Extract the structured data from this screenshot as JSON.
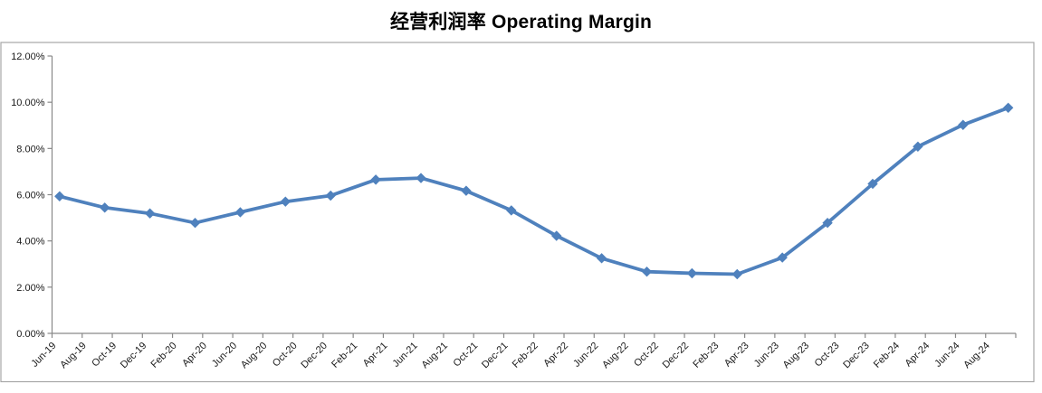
{
  "title": "经营利润率 Operating Margin",
  "chart_data": {
    "type": "line",
    "title": "经营利润率 Operating Margin",
    "grid": false,
    "legend": false,
    "y_unit": "percent",
    "ylim": [
      0,
      12
    ],
    "y_tick_labels": [
      "0.00%",
      "2.00%",
      "4.00%",
      "6.00%",
      "8.00%",
      "10.00%",
      "12.00%"
    ],
    "y_tick_values": [
      0,
      2,
      4,
      6,
      8,
      10,
      12
    ],
    "x_tick_labels": [
      "Jun-19",
      "Aug-19",
      "Oct-19",
      "Dec-19",
      "Feb-20",
      "Apr-20",
      "Jun-20",
      "Aug-20",
      "Oct-20",
      "Dec-20",
      "Feb-21",
      "Apr-21",
      "Jun-21",
      "Aug-21",
      "Oct-21",
      "Dec-21",
      "Feb-22",
      "Apr-22",
      "Jun-22",
      "Aug-22",
      "Oct-22",
      "Dec-22",
      "Feb-23",
      "Apr-23",
      "Jun-23",
      "Aug-23",
      "Oct-23",
      "Dec-23",
      "Feb-24",
      "Apr-24",
      "Jun-24",
      "Aug-24"
    ],
    "x_tick_interval_months": 2,
    "series": [
      {
        "name": "Operating Margin",
        "cadence": "quarterly",
        "points": [
          {
            "period": "Jun-19",
            "month_index": 0,
            "value": 5.93
          },
          {
            "period": "Sep-19",
            "month_index": 3,
            "value": 5.44
          },
          {
            "period": "Dec-19",
            "month_index": 6,
            "value": 5.19
          },
          {
            "period": "Mar-20",
            "month_index": 9,
            "value": 4.78
          },
          {
            "period": "Jun-20",
            "month_index": 12,
            "value": 5.24
          },
          {
            "period": "Sep-20",
            "month_index": 15,
            "value": 5.7
          },
          {
            "period": "Dec-20",
            "month_index": 18,
            "value": 5.96
          },
          {
            "period": "Mar-21",
            "month_index": 21,
            "value": 6.65
          },
          {
            "period": "Jun-21",
            "month_index": 24,
            "value": 6.72
          },
          {
            "period": "Sep-21",
            "month_index": 27,
            "value": 6.17
          },
          {
            "period": "Dec-21",
            "month_index": 30,
            "value": 5.32
          },
          {
            "period": "Mar-22",
            "month_index": 33,
            "value": 4.22
          },
          {
            "period": "Jun-22",
            "month_index": 36,
            "value": 3.25
          },
          {
            "period": "Sep-22",
            "month_index": 39,
            "value": 2.67
          },
          {
            "period": "Dec-22",
            "month_index": 42,
            "value": 2.6
          },
          {
            "period": "Mar-23",
            "month_index": 45,
            "value": 2.56
          },
          {
            "period": "Jun-23",
            "month_index": 48,
            "value": 3.28
          },
          {
            "period": "Sep-23",
            "month_index": 51,
            "value": 4.78
          },
          {
            "period": "Dec-23",
            "month_index": 54,
            "value": 6.47
          },
          {
            "period": "Mar-24",
            "month_index": 57,
            "value": 8.08
          },
          {
            "period": "Jun-24",
            "month_index": 60,
            "value": 9.02
          },
          {
            "period": "Sep-24",
            "month_index": 63,
            "value": 9.76
          }
        ]
      }
    ],
    "colors": {
      "line": "#4F81BD",
      "marker": "#4F81BD",
      "axis": "#898989",
      "chart_border": "#A6A6A6",
      "tick_text": "#1a1a1a",
      "background": "#FFFFFF"
    },
    "marker_shape": "diamond"
  }
}
